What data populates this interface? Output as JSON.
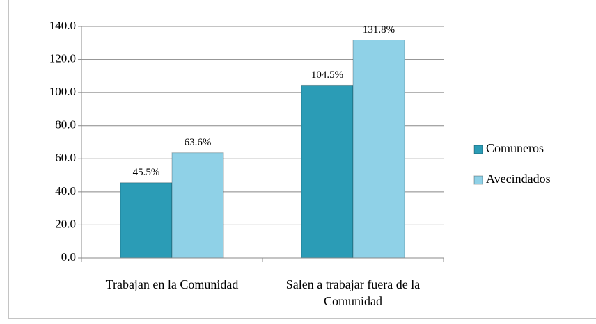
{
  "chart_data": {
    "type": "bar",
    "categories": [
      "Trabajan en la Comunidad",
      "Salen a trabajar fuera de la Comunidad"
    ],
    "series": [
      {
        "name": "Comuneros",
        "color": "#2b9cb6",
        "values": [
          45.5,
          104.5
        ],
        "value_labels": [
          "45.5%",
          "104.5%"
        ]
      },
      {
        "name": "Avecindados",
        "color": "#8fd1e7",
        "values": [
          63.6,
          131.8
        ],
        "value_labels": [
          "63.6%",
          "131.8%"
        ]
      }
    ],
    "ylim": [
      0,
      140
    ],
    "yticks": [
      {
        "value": 0,
        "label": "0.0"
      },
      {
        "value": 20,
        "label": "20.0"
      },
      {
        "value": 40,
        "label": "40.0"
      },
      {
        "value": 60,
        "label": "60.0"
      },
      {
        "value": 80,
        "label": "80.0"
      },
      {
        "value": 100,
        "label": "100.0"
      },
      {
        "value": 120,
        "label": "120.0"
      },
      {
        "value": 140,
        "label": "140.0"
      }
    ],
    "grid": true,
    "legend": "right"
  }
}
